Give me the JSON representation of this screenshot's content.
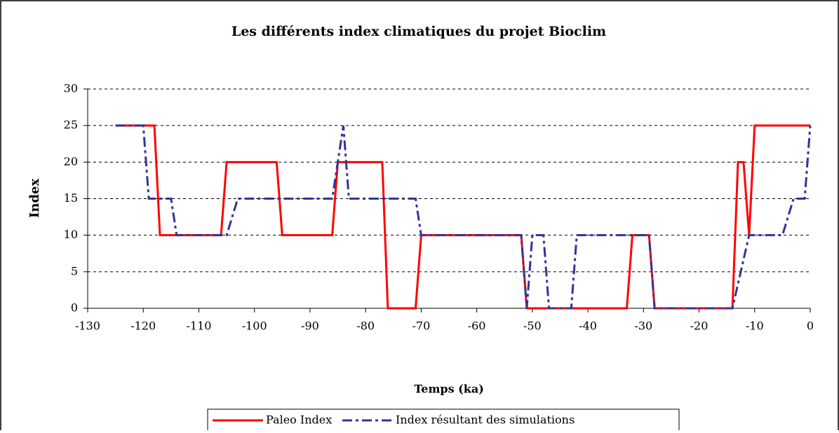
{
  "chart_data": {
    "type": "line",
    "title": "Les différents index climatiques du projet Bioclim",
    "x_label": "Temps  (ka)",
    "y_label": "Index",
    "xlim": [
      -130,
      0
    ],
    "xticks": [
      -130,
      -120,
      -110,
      -100,
      -90,
      -80,
      -70,
      -60,
      -50,
      -40,
      -30,
      -20,
      -10,
      0
    ],
    "ylim": [
      0,
      30
    ],
    "yticks": [
      0,
      5,
      10,
      15,
      20,
      25,
      30
    ],
    "grid": true,
    "legend": "bottom",
    "series": [
      {
        "name": "Paleo Index",
        "color": "#ff0000",
        "dash": "solid",
        "x": [
          -125,
          -118,
          -117,
          -106,
          -105,
          -96,
          -95,
          -86,
          -85,
          -77,
          -76,
          -71,
          -70,
          -52,
          -51,
          -33,
          -32,
          -29,
          -28,
          -14,
          -13,
          -12,
          -11,
          -10,
          0
        ],
        "values": [
          25,
          25,
          10,
          10,
          20,
          20,
          10,
          10,
          20,
          20,
          0,
          0,
          10,
          10,
          0,
          0,
          10,
          10,
          0,
          0,
          20,
          20,
          10,
          25,
          25
        ]
      },
      {
        "name": "Index résultant des simulations",
        "color": "#333399",
        "dash": "dashdot",
        "x": [
          -125,
          -120,
          -119,
          -115,
          -114,
          -105,
          -103,
          -86,
          -84,
          -83,
          -71,
          -70,
          -52,
          -51,
          -50,
          -48,
          -47,
          -43,
          -42,
          -29,
          -28,
          -14,
          -11,
          -5,
          -3,
          -1,
          0
        ],
        "values": [
          25,
          25,
          15,
          15,
          10,
          10,
          15,
          15,
          25,
          15,
          15,
          10,
          10,
          0,
          10,
          10,
          0,
          0,
          10,
          10,
          0,
          0,
          10,
          10,
          15,
          15,
          25
        ]
      }
    ]
  }
}
